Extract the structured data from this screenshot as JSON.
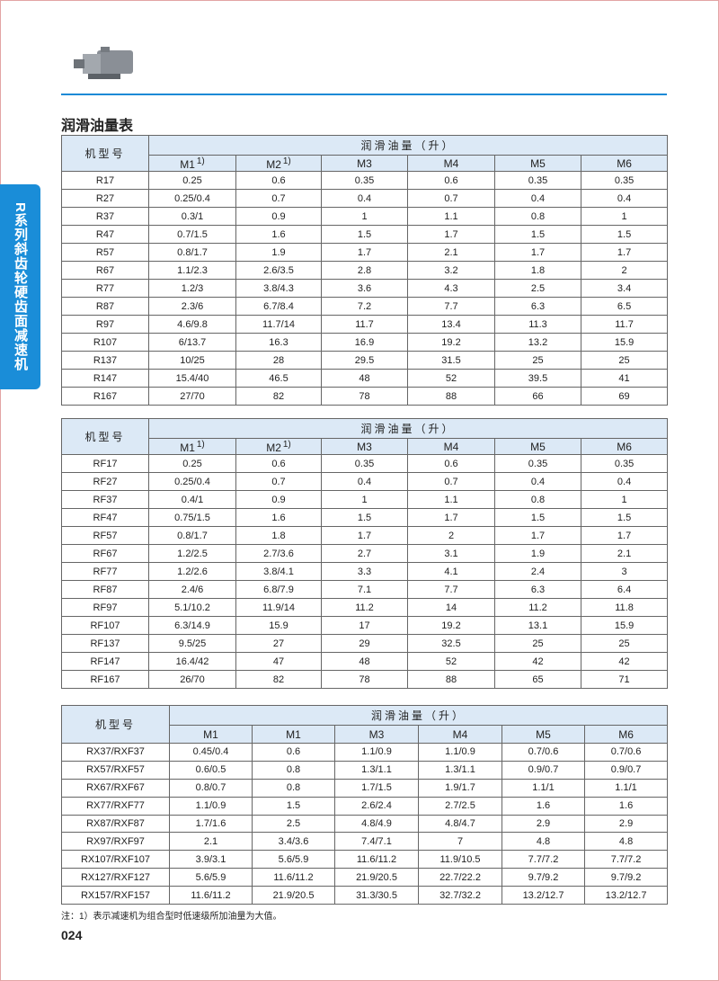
{
  "side_tab": "R系列斜齿轮硬齿面减速机",
  "title": "润滑油量表",
  "tables": [
    {
      "model_label": "机型号",
      "group_label": "润滑油量（升）",
      "columns": [
        {
          "name": "M1",
          "mark": "1)"
        },
        {
          "name": "M2",
          "mark": "1)"
        },
        {
          "name": "M3"
        },
        {
          "name": "M4"
        },
        {
          "name": "M5"
        },
        {
          "name": "M6"
        }
      ],
      "rows": [
        [
          "R17",
          "0.25",
          "0.6",
          "0.35",
          "0.6",
          "0.35",
          "0.35"
        ],
        [
          "R27",
          "0.25/0.4",
          "0.7",
          "0.4",
          "0.7",
          "0.4",
          "0.4"
        ],
        [
          "R37",
          "0.3/1",
          "0.9",
          "1",
          "1.1",
          "0.8",
          "1"
        ],
        [
          "R47",
          "0.7/1.5",
          "1.6",
          "1.5",
          "1.7",
          "1.5",
          "1.5"
        ],
        [
          "R57",
          "0.8/1.7",
          "1.9",
          "1.7",
          "2.1",
          "1.7",
          "1.7"
        ],
        [
          "R67",
          "1.1/2.3",
          "2.6/3.5",
          "2.8",
          "3.2",
          "1.8",
          "2"
        ],
        [
          "R77",
          "1.2/3",
          "3.8/4.3",
          "3.6",
          "4.3",
          "2.5",
          "3.4"
        ],
        [
          "R87",
          "2.3/6",
          "6.7/8.4",
          "7.2",
          "7.7",
          "6.3",
          "6.5"
        ],
        [
          "R97",
          "4.6/9.8",
          "11.7/14",
          "11.7",
          "13.4",
          "11.3",
          "11.7"
        ],
        [
          "R107",
          "6/13.7",
          "16.3",
          "16.9",
          "19.2",
          "13.2",
          "15.9"
        ],
        [
          "R137",
          "10/25",
          "28",
          "29.5",
          "31.5",
          "25",
          "25"
        ],
        [
          "R147",
          "15.4/40",
          "46.5",
          "48",
          "52",
          "39.5",
          "41"
        ],
        [
          "R167",
          "27/70",
          "82",
          "78",
          "88",
          "66",
          "69"
        ]
      ]
    },
    {
      "model_label": "机型号",
      "group_label": "润滑油量（升）",
      "columns": [
        {
          "name": "M1",
          "mark": "1)"
        },
        {
          "name": "M2",
          "mark": "1)"
        },
        {
          "name": "M3"
        },
        {
          "name": "M4"
        },
        {
          "name": "M5"
        },
        {
          "name": "M6"
        }
      ],
      "rows": [
        [
          "RF17",
          "0.25",
          "0.6",
          "0.35",
          "0.6",
          "0.35",
          "0.35"
        ],
        [
          "RF27",
          "0.25/0.4",
          "0.7",
          "0.4",
          "0.7",
          "0.4",
          "0.4"
        ],
        [
          "RF37",
          "0.4/1",
          "0.9",
          "1",
          "1.1",
          "0.8",
          "1"
        ],
        [
          "RF47",
          "0.75/1.5",
          "1.6",
          "1.5",
          "1.7",
          "1.5",
          "1.5"
        ],
        [
          "RF57",
          "0.8/1.7",
          "1.8",
          "1.7",
          "2",
          "1.7",
          "1.7"
        ],
        [
          "RF67",
          "1.2/2.5",
          "2.7/3.6",
          "2.7",
          "3.1",
          "1.9",
          "2.1"
        ],
        [
          "RF77",
          "1.2/2.6",
          "3.8/4.1",
          "3.3",
          "4.1",
          "2.4",
          "3"
        ],
        [
          "RF87",
          "2.4/6",
          "6.8/7.9",
          "7.1",
          "7.7",
          "6.3",
          "6.4"
        ],
        [
          "RF97",
          "5.1/10.2",
          "11.9/14",
          "11.2",
          "14",
          "11.2",
          "11.8"
        ],
        [
          "RF107",
          "6.3/14.9",
          "15.9",
          "17",
          "19.2",
          "13.1",
          "15.9"
        ],
        [
          "RF137",
          "9.5/25",
          "27",
          "29",
          "32.5",
          "25",
          "25"
        ],
        [
          "RF147",
          "16.4/42",
          "47",
          "48",
          "52",
          "42",
          "42"
        ],
        [
          "RF167",
          "26/70",
          "82",
          "78",
          "88",
          "65",
          "71"
        ]
      ]
    },
    {
      "model_label": "机型号",
      "group_label": "润滑油量（升）",
      "columns": [
        {
          "name": "M1"
        },
        {
          "name": "M1"
        },
        {
          "name": "M3"
        },
        {
          "name": "M4"
        },
        {
          "name": "M5"
        },
        {
          "name": "M6"
        }
      ],
      "rows": [
        [
          "RX37/RXF37",
          "0.45/0.4",
          "0.6",
          "1.1/0.9",
          "1.1/0.9",
          "0.7/0.6",
          "0.7/0.6"
        ],
        [
          "RX57/RXF57",
          "0.6/0.5",
          "0.8",
          "1.3/1.1",
          "1.3/1.1",
          "0.9/0.7",
          "0.9/0.7"
        ],
        [
          "RX67/RXF67",
          "0.8/0.7",
          "0.8",
          "1.7/1.5",
          "1.9/1.7",
          "1.1/1",
          "1.1/1"
        ],
        [
          "RX77/RXF77",
          "1.1/0.9",
          "1.5",
          "2.6/2.4",
          "2.7/2.5",
          "1.6",
          "1.6"
        ],
        [
          "RX87/RXF87",
          "1.7/1.6",
          "2.5",
          "4.8/4.9",
          "4.8/4.7",
          "2.9",
          "2.9"
        ],
        [
          "RX97/RXF97",
          "2.1",
          "3.4/3.6",
          "7.4/7.1",
          "7",
          "4.8",
          "4.8"
        ],
        [
          "RX107/RXF107",
          "3.9/3.1",
          "5.6/5.9",
          "11.6/11.2",
          "11.9/10.5",
          "7.7/7.2",
          "7.7/7.2"
        ],
        [
          "RX127/RXF127",
          "5.6/5.9",
          "11.6/11.2",
          "21.9/20.5",
          "22.7/22.2",
          "9.7/9.2",
          "9.7/9.2"
        ],
        [
          "RX157/RXF157",
          "11.6/11.2",
          "21.9/20.5",
          "31.3/30.5",
          "32.7/32.2",
          "13.2/12.7",
          "13.2/12.7"
        ]
      ]
    }
  ],
  "note": "注：1）表示减速机为组合型时低速级所加油量为大值。",
  "page_number": "024"
}
